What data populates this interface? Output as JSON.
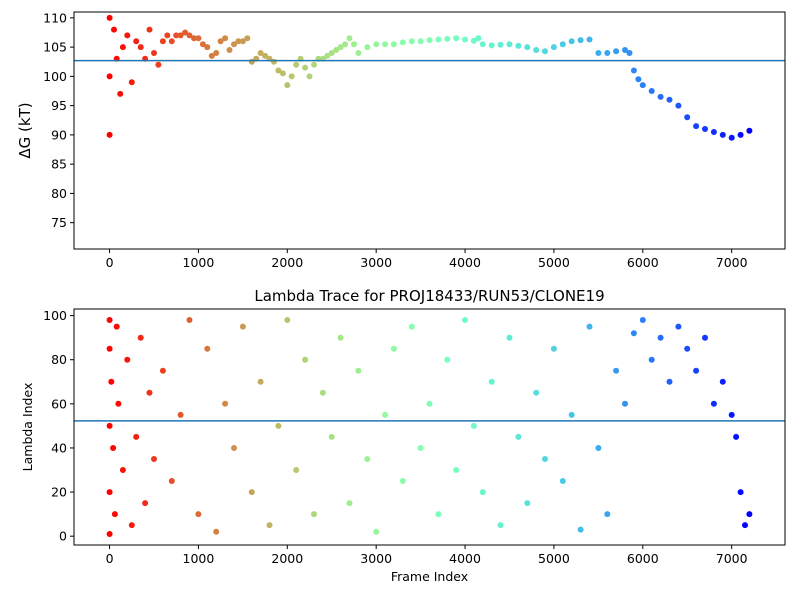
{
  "chart_data": [
    {
      "type": "scatter",
      "title": "",
      "xlabel": "",
      "ylabel": "ΔG (kT)",
      "xlim": [
        -400,
        7600
      ],
      "ylim": [
        70.5,
        111
      ],
      "xticks": [
        0,
        1000,
        2000,
        3000,
        4000,
        5000,
        6000,
        7000
      ],
      "xtick_labels": [
        "0",
        "1000",
        "2000",
        "3000",
        "4000",
        "5000",
        "6000",
        "7000"
      ],
      "yticks": [
        75,
        80,
        85,
        90,
        95,
        100,
        105,
        110
      ],
      "ytick_labels": [
        "75",
        "80",
        "85",
        "90",
        "95",
        "100",
        "105",
        "110"
      ],
      "colormap": "rainbow (red at frame 0 to purple at later frames)",
      "reference_line": {
        "y": 102.7,
        "color": "#1f77b4"
      },
      "x": [
        0,
        0,
        0,
        50,
        80,
        120,
        150,
        200,
        250,
        300,
        350,
        400,
        450,
        500,
        550,
        600,
        650,
        700,
        750,
        800,
        850,
        900,
        950,
        1000,
        1050,
        1100,
        1150,
        1200,
        1250,
        1300,
        1350,
        1400,
        1450,
        1500,
        1550,
        1600,
        1650,
        1700,
        1750,
        1800,
        1850,
        1900,
        1950,
        2000,
        2050,
        2100,
        2150,
        2200,
        2250,
        2300,
        2350,
        2400,
        2450,
        2500,
        2550,
        2600,
        2650,
        2700,
        2750,
        2800,
        2900,
        3000,
        3100,
        3200,
        3300,
        3400,
        3500,
        3600,
        3700,
        3800,
        3900,
        4000,
        4100,
        4150,
        4200,
        4300,
        4400,
        4500,
        4600,
        4700,
        4800,
        4900,
        5000,
        5100,
        5200,
        5300,
        5400,
        5500,
        5600,
        5700,
        5800,
        5850,
        5900,
        5950,
        6000,
        6100,
        6200,
        6300,
        6400,
        6500,
        6600,
        6700,
        6800,
        6900,
        7000,
        7100,
        7200
      ],
      "y": [
        90,
        100,
        110,
        108,
        103,
        97,
        105,
        107,
        99,
        106,
        105,
        103,
        108,
        104,
        102,
        106,
        107,
        106,
        107,
        107,
        107.5,
        107,
        106.5,
        106.5,
        105.5,
        105,
        103.5,
        104,
        106,
        106.5,
        104.5,
        105.5,
        106,
        106,
        106.5,
        102.5,
        103,
        104,
        103.5,
        103,
        102.5,
        101,
        100.5,
        98.5,
        100,
        102,
        103,
        101.5,
        100,
        102,
        103,
        103,
        103.5,
        104,
        104.5,
        105,
        105.5,
        106.5,
        105.5,
        104,
        105,
        105.5,
        105.5,
        105.5,
        105.8,
        106,
        106,
        106.2,
        106.3,
        106.4,
        106.5,
        106.3,
        106.1,
        106.5,
        105.5,
        105.3,
        105.4,
        105.5,
        105.2,
        105,
        104.5,
        104.3,
        105,
        105.5,
        106,
        106.2,
        106.3,
        104,
        104,
        104.3,
        104.5,
        104,
        101,
        99.5,
        98.5,
        97.5,
        96.5,
        96,
        95,
        93,
        91.5,
        91,
        90.5,
        90,
        89.5,
        90,
        90.7
      ]
    },
    {
      "type": "scatter",
      "title": "Lambda Trace for PROJ18433/RUN53/CLONE19",
      "xlabel": "Frame Index",
      "ylabel": "Lambda Index",
      "xlim": [
        -400,
        7600
      ],
      "ylim": [
        -4,
        103
      ],
      "xticks": [
        0,
        1000,
        2000,
        3000,
        4000,
        5000,
        6000,
        7000
      ],
      "xtick_labels": [
        "0",
        "1000",
        "2000",
        "3000",
        "4000",
        "5000",
        "6000",
        "7000"
      ],
      "yticks": [
        0,
        20,
        40,
        60,
        80,
        100
      ],
      "ytick_labels": [
        "0",
        "20",
        "40",
        "60",
        "80",
        "100"
      ],
      "colormap": "rainbow (red at frame 0 to purple at later frames)",
      "reference_line": {
        "y": 52.3,
        "color": "#1f77b4"
      },
      "x": [
        0,
        0,
        0,
        0,
        0,
        20,
        40,
        60,
        80,
        100,
        150,
        200,
        250,
        300,
        350,
        400,
        450,
        500,
        600,
        700,
        800,
        900,
        1000,
        1100,
        1200,
        1300,
        1400,
        1500,
        1600,
        1700,
        1800,
        1900,
        2000,
        2100,
        2200,
        2300,
        2400,
        2500,
        2600,
        2700,
        2800,
        2900,
        3000,
        3100,
        3200,
        3300,
        3400,
        3500,
        3600,
        3700,
        3800,
        3900,
        4000,
        4100,
        4200,
        4300,
        4400,
        4500,
        4600,
        4700,
        4800,
        4900,
        5000,
        5100,
        5200,
        5300,
        5400,
        5500,
        5600,
        5700,
        5800,
        5900,
        6000,
        6100,
        6200,
        6300,
        6400,
        6500,
        6600,
        6700,
        6800,
        6900,
        7000,
        7050,
        7100,
        7150,
        7200
      ],
      "y": [
        98,
        50,
        20,
        1,
        85,
        70,
        40,
        10,
        95,
        60,
        30,
        80,
        5,
        45,
        90,
        15,
        65,
        35,
        75,
        25,
        55,
        98,
        10,
        85,
        2,
        60,
        40,
        95,
        20,
        70,
        5,
        50,
        98,
        30,
        80,
        10,
        65,
        45,
        90,
        15,
        75,
        35,
        2,
        55,
        85,
        25,
        95,
        40,
        60,
        10,
        80,
        30,
        98,
        50,
        20,
        70,
        5,
        90,
        45,
        15,
        65,
        35,
        85,
        25,
        55,
        3,
        95,
        40,
        10,
        75,
        60,
        92,
        98,
        80,
        90,
        70,
        95,
        85,
        75,
        90,
        60,
        70,
        55,
        45,
        20,
        5,
        10
      ]
    }
  ]
}
